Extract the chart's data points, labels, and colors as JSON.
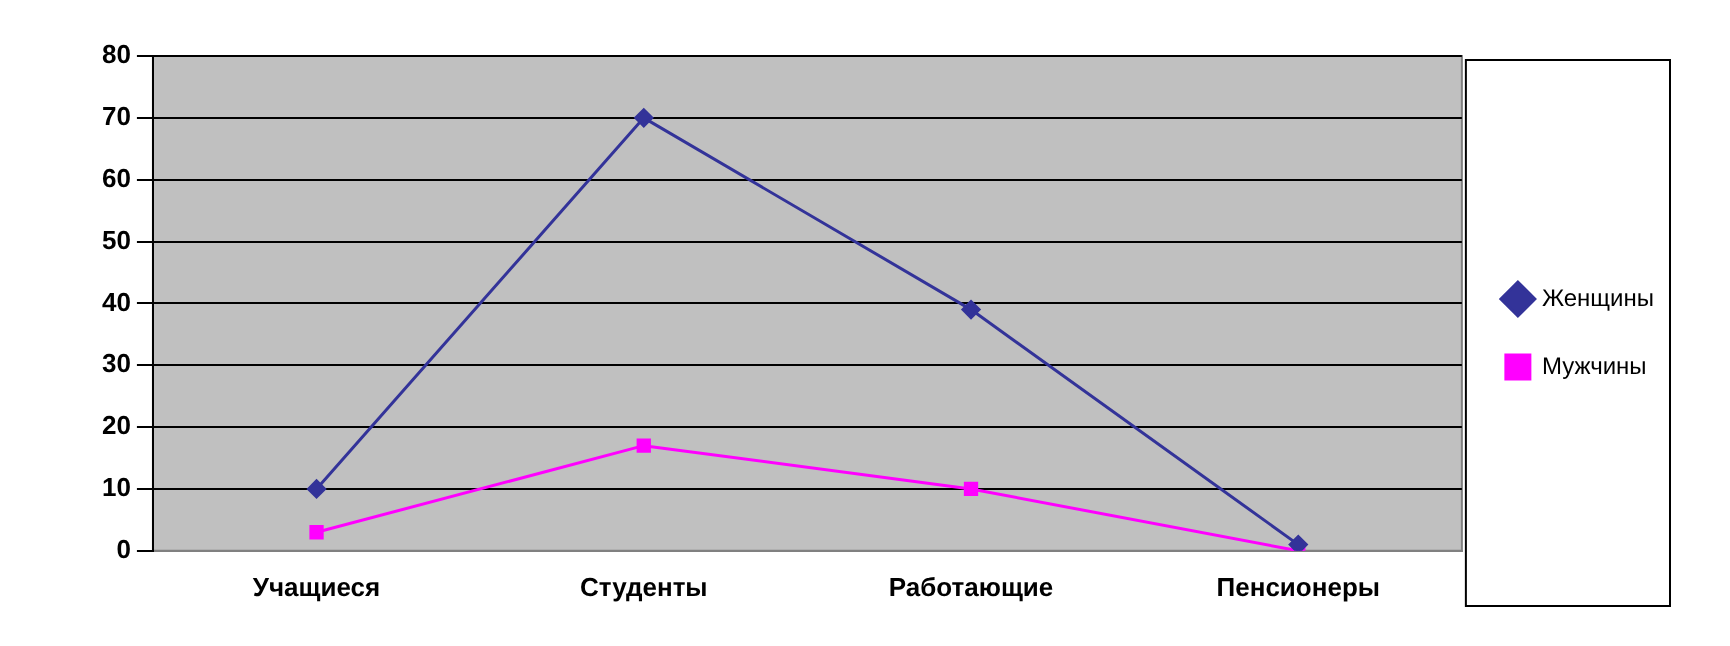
{
  "chart_data": {
    "type": "line",
    "categories": [
      "Учащиеся",
      "Студенты",
      "Работающие",
      "Пенсионеры"
    ],
    "series": [
      {
        "name": "Женщины",
        "color": "#333399",
        "marker": "diamond",
        "values": [
          10,
          70,
          39,
          1
        ]
      },
      {
        "name": "Мужчины",
        "color": "#ff00ff",
        "marker": "square",
        "values": [
          3,
          17,
          10,
          0
        ]
      }
    ],
    "ylim": [
      0,
      80
    ],
    "yticks": [
      0,
      10,
      20,
      30,
      40,
      50,
      60,
      70,
      80
    ],
    "grid": "y",
    "legend": "right",
    "line_style": "solid"
  }
}
